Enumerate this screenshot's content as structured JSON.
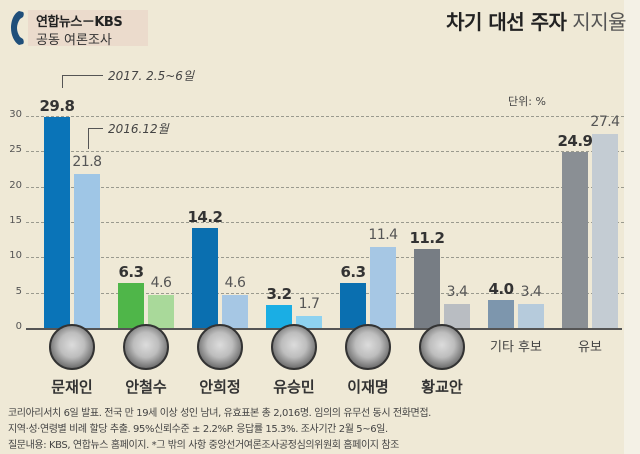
{
  "header": {
    "logo_line1": "연합뉴스－KBS",
    "logo_line2": "공동 여론조사",
    "logo_icon": "phone-icon",
    "title_bold": "차기 대선 주자",
    "title_light": "지지율"
  },
  "unit_label": "단위: %",
  "legend": {
    "current": "2017. 2.5~6일",
    "previous": "2016.12월"
  },
  "footnote": {
    "line1": "코리아리서치 6일 발표. 전국 만 19세 이상 성인 남녀, 유효표본 총 2,016명. 임의의 유무선 동시 전화면접.",
    "line2": "지역·성·연령별 비례 할당 추출. 95%신뢰수준 ± 2.2%P. 응답률 15.3%. 조사기간 2월 5~6일.",
    "line3": "질문내용: KBS, 연합뉴스 홈페이지. *그 밖의 사항 중앙선거여론조사공정심의위원회 홈페이지 참조"
  },
  "colors": {
    "background": "#efe9d6",
    "moon_dark": "#0a74b8",
    "moon_light": "#9fc6e6",
    "ahn_cs_dark": "#4fb649",
    "ahn_cs_light": "#a9d99a",
    "ahn_hj_dark": "#0a6fb0",
    "ahn_hj_light": "#a6c7e4",
    "yoo_dark": "#1aaee4",
    "yoo_light": "#8ed2f0",
    "lee_dark": "#0a6fb0",
    "lee_light": "#a6c7e4",
    "hwang_dark": "#777d84",
    "hwang_light": "#b9bdc2",
    "etc_dark": "#7d96ad",
    "etc_light": "#b6cbdc",
    "undecided_dark": "#8a8f94",
    "undecided_light": "#c4ccd3"
  },
  "chart_data": {
    "type": "bar",
    "title": "차기 대선 주자 지지율",
    "subtitle": "연합뉴스－KBS 공동 여론조사",
    "xlabel": "",
    "ylabel": "단위: %",
    "ylim": [
      0,
      30
    ],
    "yticks": [
      0,
      5,
      10,
      15,
      20,
      25,
      30
    ],
    "grid": true,
    "legend_position": "top-left annotation",
    "categories": [
      "문재인",
      "안철수",
      "안희정",
      "유승민",
      "이재명",
      "황교안",
      "기타 후보",
      "유보"
    ],
    "series": [
      {
        "name": "2017. 2.5~6일",
        "values": [
          29.8,
          6.3,
          14.2,
          3.2,
          6.3,
          11.2,
          4.0,
          24.9
        ]
      },
      {
        "name": "2016.12월",
        "values": [
          21.8,
          4.6,
          4.6,
          1.7,
          11.4,
          3.4,
          3.4,
          27.4
        ]
      }
    ],
    "labels_current": [
      "29.8",
      "6.3",
      "14.2",
      "3.2",
      "6.3",
      "11.2",
      "4.0",
      "24.9"
    ],
    "labels_previous": [
      "21.8",
      "4.6",
      "4.6",
      "1.7",
      "11.4",
      "3.4",
      "3.4",
      "27.4"
    ],
    "ytick_labels": [
      "0",
      "5",
      "10",
      "15",
      "20",
      "25",
      "30"
    ]
  }
}
